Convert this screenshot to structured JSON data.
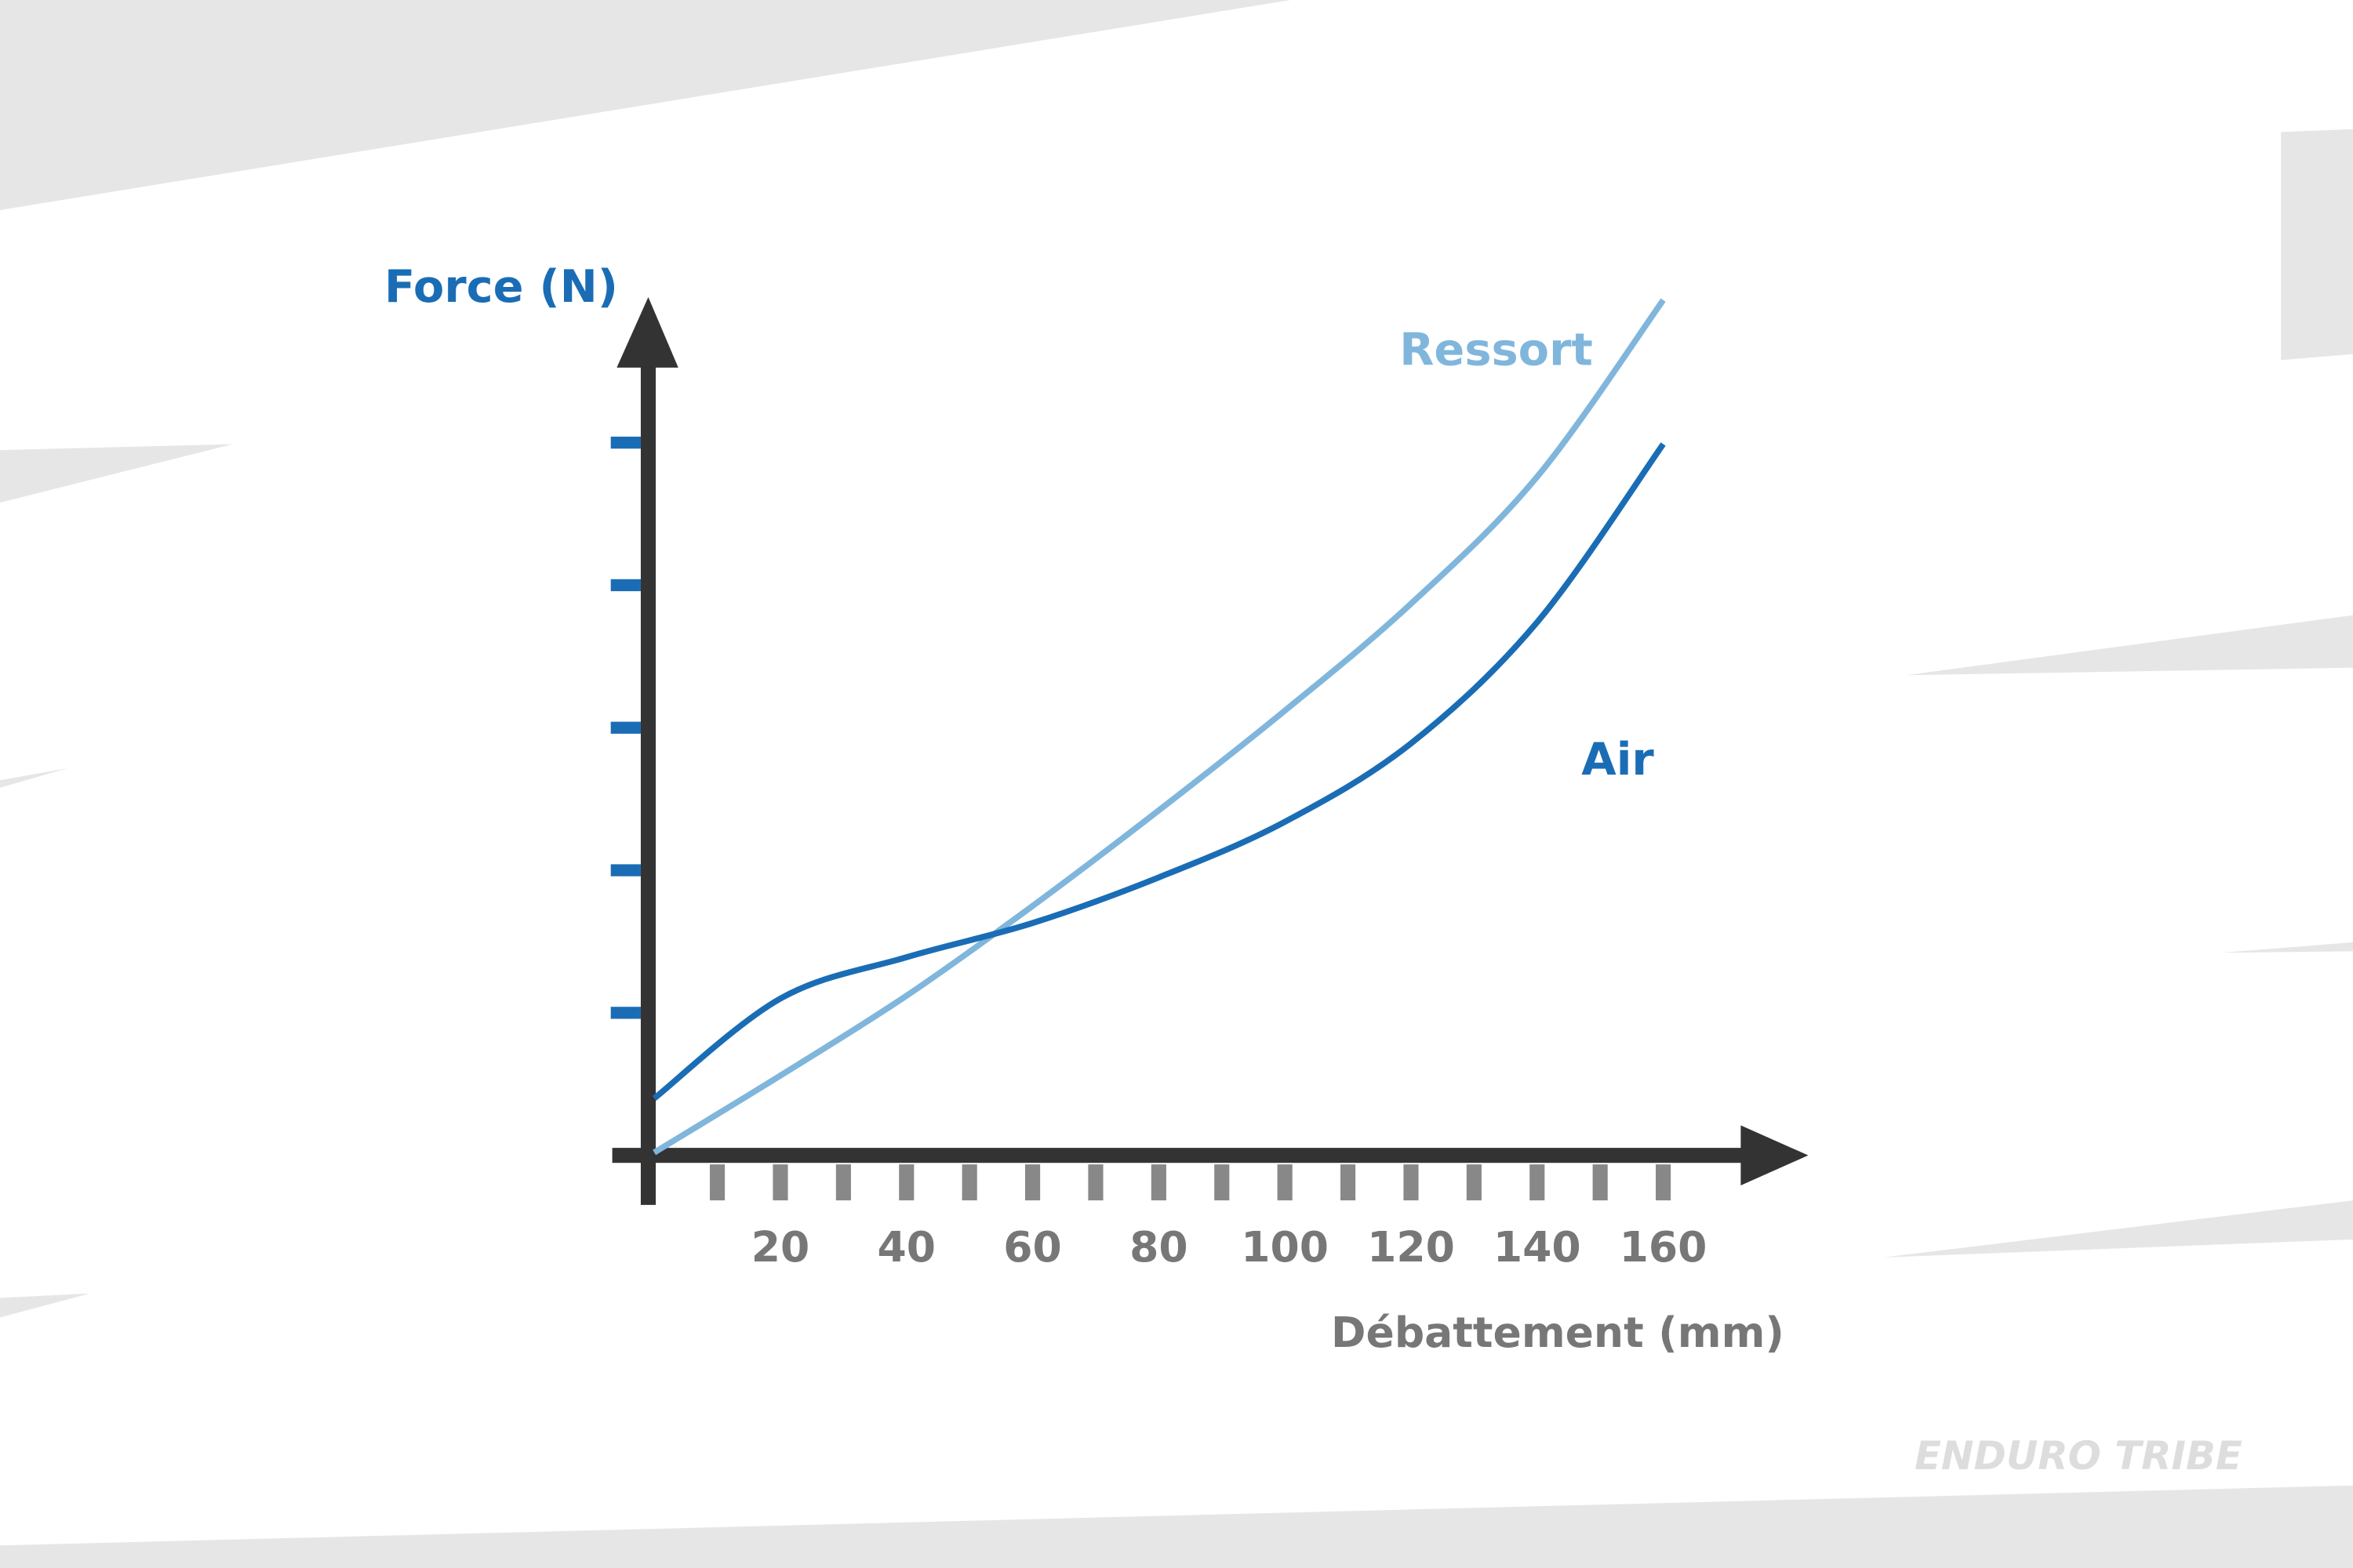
{
  "chart_data": {
    "type": "line",
    "y_label": "Force (N)",
    "x_label": "Débattement (mm)",
    "x": [
      0,
      20,
      40,
      60,
      80,
      100,
      120,
      140,
      160
    ],
    "series": [
      {
        "name": "Ressort",
        "color": "#80b6dc",
        "values": [
          0.02,
          0.56,
          1.12,
          1.75,
          2.42,
          3.12,
          3.87,
          4.76,
          6.0
        ]
      },
      {
        "name": "Air",
        "color": "#1a6db5",
        "values": [
          0.4,
          1.1,
          1.39,
          1.63,
          1.95,
          2.34,
          2.89,
          3.74,
          4.99
        ]
      }
    ],
    "xlim": [
      0,
      183
    ],
    "ylim": [
      0,
      6
    ],
    "xticks": [
      20,
      40,
      60,
      80,
      100,
      120,
      140,
      160
    ],
    "xminor_ticks": [
      10,
      30,
      50,
      70,
      90,
      110,
      130,
      150
    ],
    "yticks": [
      1,
      2,
      3,
      4,
      5
    ],
    "watermark": "ENDURO TRIBE"
  }
}
